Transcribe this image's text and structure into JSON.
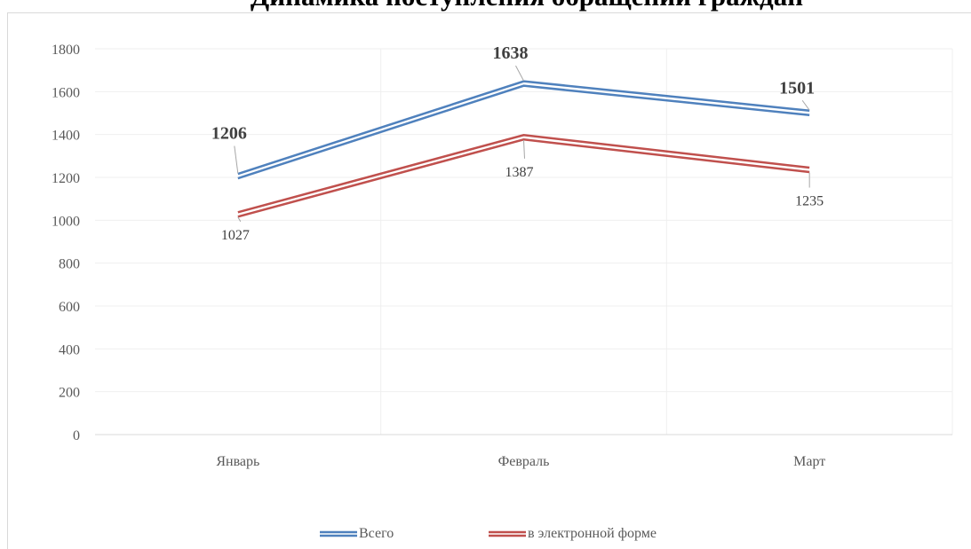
{
  "chart_data": {
    "type": "line",
    "title": "Динамика поступления обращений граждан",
    "categories": [
      "Январь",
      "Февраль",
      "Март"
    ],
    "ylim": [
      0,
      1800
    ],
    "yticks": [
      0,
      200,
      400,
      600,
      800,
      1000,
      1200,
      1400,
      1600,
      1800
    ],
    "grid": true,
    "legend_position": "bottom",
    "series": [
      {
        "name": "Всего",
        "values": [
          1206,
          1638,
          1501
        ],
        "labels": [
          "1206",
          "1638",
          "1501"
        ],
        "color": "#4f81bd",
        "label_style": "bold"
      },
      {
        "name": "в электронной форме",
        "values": [
          1027,
          1387,
          1235
        ],
        "labels": [
          "1027",
          "1387",
          "1235"
        ],
        "color": "#c0504d",
        "label_style": "normal"
      }
    ]
  }
}
